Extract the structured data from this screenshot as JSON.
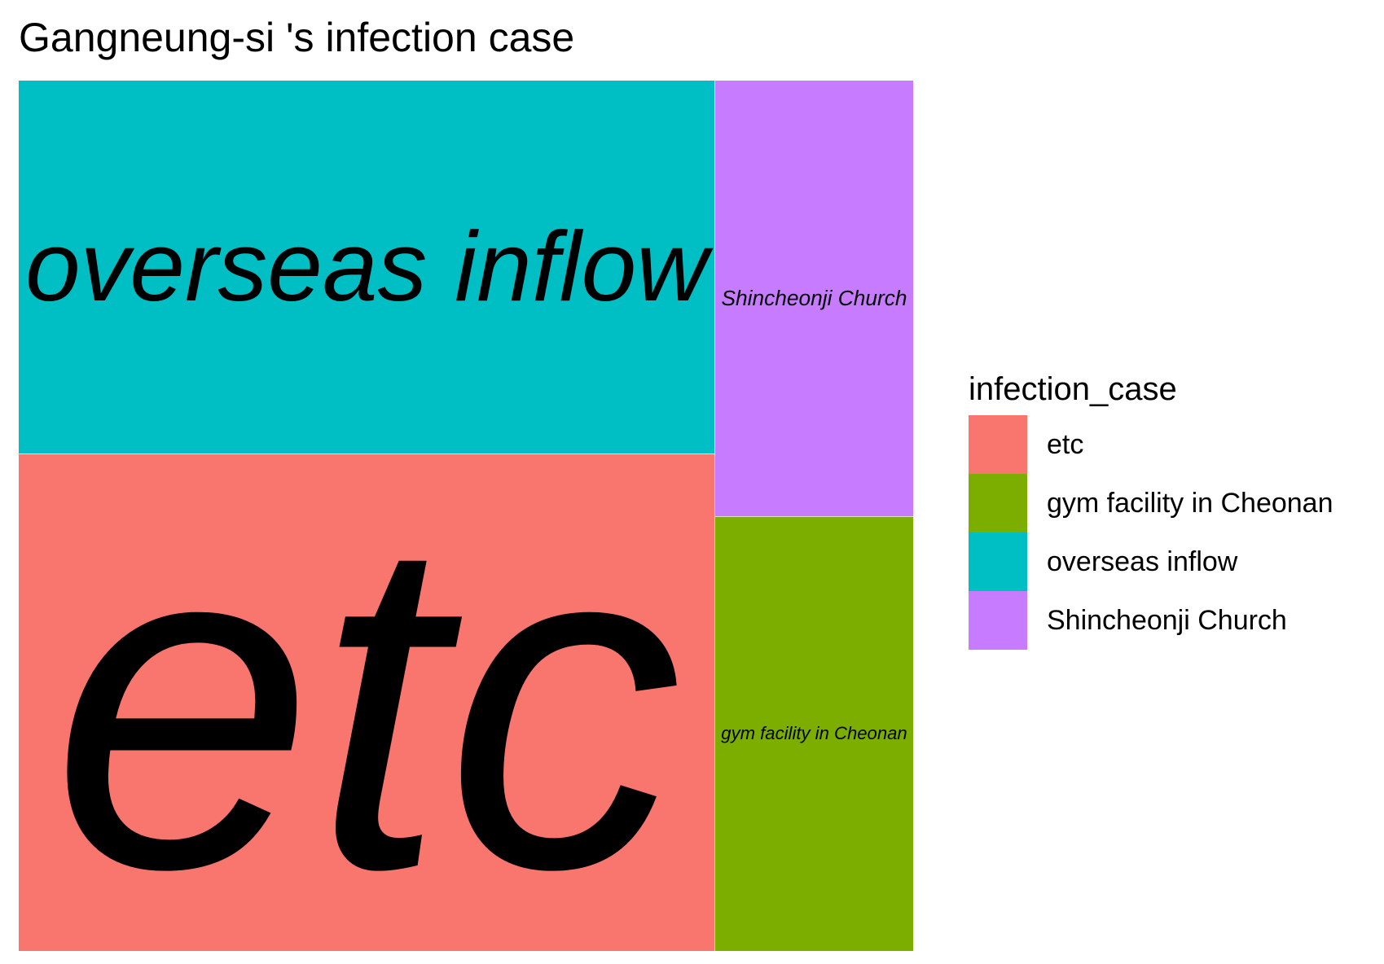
{
  "chart_data": {
    "type": "treemap",
    "title": "Gangneung-si 's infection case",
    "legend_title": "infection_case",
    "legend_position": "right",
    "tiles": [
      {
        "name": "overseas inflow",
        "value": 6,
        "color": "#00BFC4"
      },
      {
        "name": "etc",
        "value": 8,
        "color": "#F8766D"
      },
      {
        "name": "Shincheonji Church",
        "value": 2,
        "color": "#C77CFF"
      },
      {
        "name": "gym facility in Cheonan",
        "value": 2,
        "color": "#7CAE00"
      }
    ],
    "legend": [
      {
        "label": "etc",
        "color": "#F8766D"
      },
      {
        "label": "gym facility in Cheonan",
        "color": "#7CAE00"
      },
      {
        "label": "overseas inflow",
        "color": "#00BFC4"
      },
      {
        "label": "Shincheonji Church",
        "color": "#C77CFF"
      }
    ]
  }
}
